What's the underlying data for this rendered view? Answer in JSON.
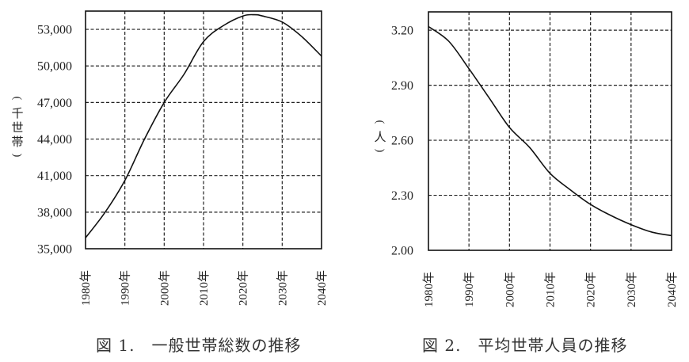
{
  "chart_data": [
    {
      "type": "line",
      "title": "図 1.　一般世帯総数の推移",
      "xlabel": "",
      "ylabel": "（千世帯）",
      "x_ticks": [
        "1980年",
        "1990年",
        "2000年",
        "2010年",
        "2020年",
        "2030年",
        "2040年"
      ],
      "y_ticks": [
        "35,000",
        "38,000",
        "41,000",
        "44,000",
        "47,000",
        "50,000",
        "53,000"
      ],
      "y_tick_values": [
        35000,
        38000,
        41000,
        44000,
        47000,
        50000,
        53000
      ],
      "xlim": [
        1980,
        2040
      ],
      "ylim": [
        35000,
        54500
      ],
      "grid": true,
      "legend": null,
      "series": [
        {
          "name": "一般世帯総数",
          "x": [
            1980,
            1985,
            1990,
            1995,
            2000,
            2005,
            2010,
            2015,
            2020,
            2023,
            2025,
            2030,
            2035,
            2040
          ],
          "values": [
            35900,
            38000,
            40600,
            44000,
            47000,
            49300,
            52000,
            53300,
            54100,
            54200,
            54100,
            53600,
            52400,
            50800
          ]
        }
      ]
    },
    {
      "type": "line",
      "title": "図 2.　平均世帯人員の推移",
      "xlabel": "",
      "ylabel": "（人）",
      "x_ticks": [
        "1980年",
        "1990年",
        "2000年",
        "2010年",
        "2020年",
        "2030年",
        "2040年"
      ],
      "y_ticks": [
        "2.00",
        "2.30",
        "2.60",
        "2.90",
        "3.20"
      ],
      "y_tick_values": [
        2.0,
        2.3,
        2.6,
        2.9,
        3.2
      ],
      "xlim": [
        1980,
        2040
      ],
      "ylim": [
        2.0,
        3.3
      ],
      "grid": true,
      "legend": null,
      "series": [
        {
          "name": "平均世帯人員",
          "x": [
            1980,
            1985,
            1990,
            1995,
            2000,
            2005,
            2010,
            2015,
            2020,
            2025,
            2030,
            2035,
            2040
          ],
          "values": [
            3.22,
            3.14,
            2.99,
            2.83,
            2.67,
            2.56,
            2.42,
            2.33,
            2.25,
            2.19,
            2.14,
            2.1,
            2.08
          ]
        }
      ]
    }
  ],
  "captions": {
    "fig1": "図 1.　一般世帯総数の推移",
    "fig2": "図 2.　平均世帯人員の推移"
  },
  "colors": {
    "line": "#111111",
    "grid": "#222222",
    "axis": "#111111",
    "background": "#ffffff"
  }
}
